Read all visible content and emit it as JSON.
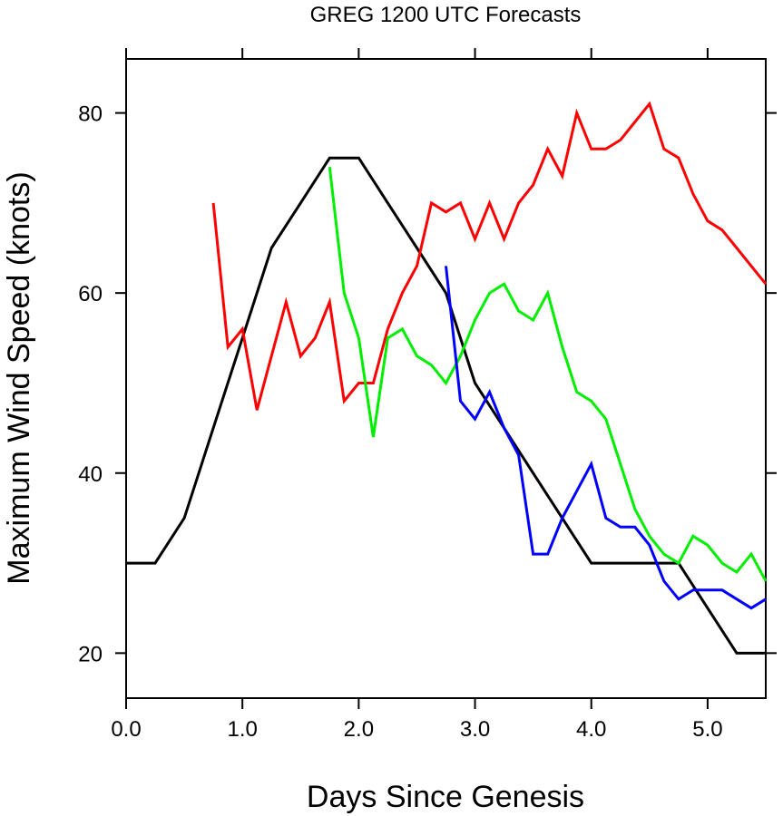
{
  "chart_data": {
    "type": "line",
    "title": "GREG 1200 UTC Forecasts",
    "xlabel": "Days Since Genesis",
    "ylabel": "Maximum Wind Speed (knots)",
    "xlim": [
      0,
      5.5
    ],
    "ylim": [
      15,
      86
    ],
    "xticks": [
      0,
      1,
      2,
      3,
      4,
      5
    ],
    "xtick_labels": [
      "0.0",
      "1.0",
      "2.0",
      "3.0",
      "4.0",
      "5.0"
    ],
    "yticks": [
      20,
      40,
      60,
      80
    ],
    "ytick_labels": [
      "20",
      "40",
      "60",
      "80"
    ],
    "grid": false,
    "series": [
      {
        "color": "#000000",
        "x": [
          0,
          0.25,
          0.5,
          0.75,
          1.0,
          1.25,
          1.5,
          1.75,
          2.0,
          2.25,
          2.5,
          2.75,
          3.0,
          3.25,
          3.5,
          3.75,
          4.0,
          4.25,
          4.5,
          4.75,
          5.0,
          5.25,
          5.5
        ],
        "y": [
          30,
          30,
          35,
          45,
          55,
          65,
          70,
          75,
          75,
          70,
          65,
          60,
          50,
          45,
          40,
          35,
          30,
          30,
          30,
          30,
          25,
          20,
          20
        ]
      },
      {
        "color": "#ff0000",
        "x": [
          0.75,
          0.875,
          1.0,
          1.125,
          1.25,
          1.375,
          1.5,
          1.625,
          1.75,
          1.875,
          2.0,
          2.125,
          2.25,
          2.375,
          2.5,
          2.625,
          2.75,
          2.875,
          3.0,
          3.125,
          3.25,
          3.375,
          3.5,
          3.625,
          3.75,
          3.875,
          4.0,
          4.125,
          4.25,
          4.375,
          4.5,
          4.625,
          4.75,
          4.875,
          5.0,
          5.125,
          5.25,
          5.375,
          5.5
        ],
        "y": [
          70,
          54,
          56,
          47,
          53,
          59,
          53,
          55,
          59,
          48,
          50,
          50,
          56,
          60,
          63,
          70,
          69,
          70,
          66,
          70,
          66,
          70,
          72,
          76,
          73,
          80,
          76,
          76,
          77,
          79,
          81,
          76,
          75,
          71,
          68,
          67,
          65,
          63,
          61
        ]
      },
      {
        "color": "#00ee00",
        "x": [
          1.75,
          1.875,
          2.0,
          2.125,
          2.25,
          2.375,
          2.5,
          2.625,
          2.75,
          2.875,
          3.0,
          3.125,
          3.25,
          3.375,
          3.5,
          3.625,
          3.75,
          3.875,
          4.0,
          4.125,
          4.25,
          4.375,
          4.5,
          4.625,
          4.75,
          4.875,
          5.0,
          5.125,
          5.25,
          5.375,
          5.5
        ],
        "y": [
          74,
          60,
          55,
          44,
          55,
          56,
          53,
          52,
          50,
          53,
          57,
          60,
          61,
          58,
          57,
          60,
          54,
          49,
          48,
          46,
          41,
          36,
          33,
          31,
          30,
          33,
          32,
          30,
          29,
          31,
          28
        ]
      },
      {
        "color": "#0000ff",
        "x": [
          2.75,
          2.875,
          3.0,
          3.125,
          3.25,
          3.375,
          3.5,
          3.625,
          3.75,
          3.875,
          4.0,
          4.125,
          4.25,
          4.375,
          4.5,
          4.625,
          4.75,
          4.875,
          5.0,
          5.125,
          5.25,
          5.375,
          5.5
        ],
        "y": [
          63,
          48,
          46,
          49,
          45,
          42,
          31,
          31,
          35,
          38,
          41,
          35,
          34,
          34,
          32,
          28,
          26,
          27,
          27,
          27,
          26,
          25,
          26
        ]
      }
    ]
  }
}
